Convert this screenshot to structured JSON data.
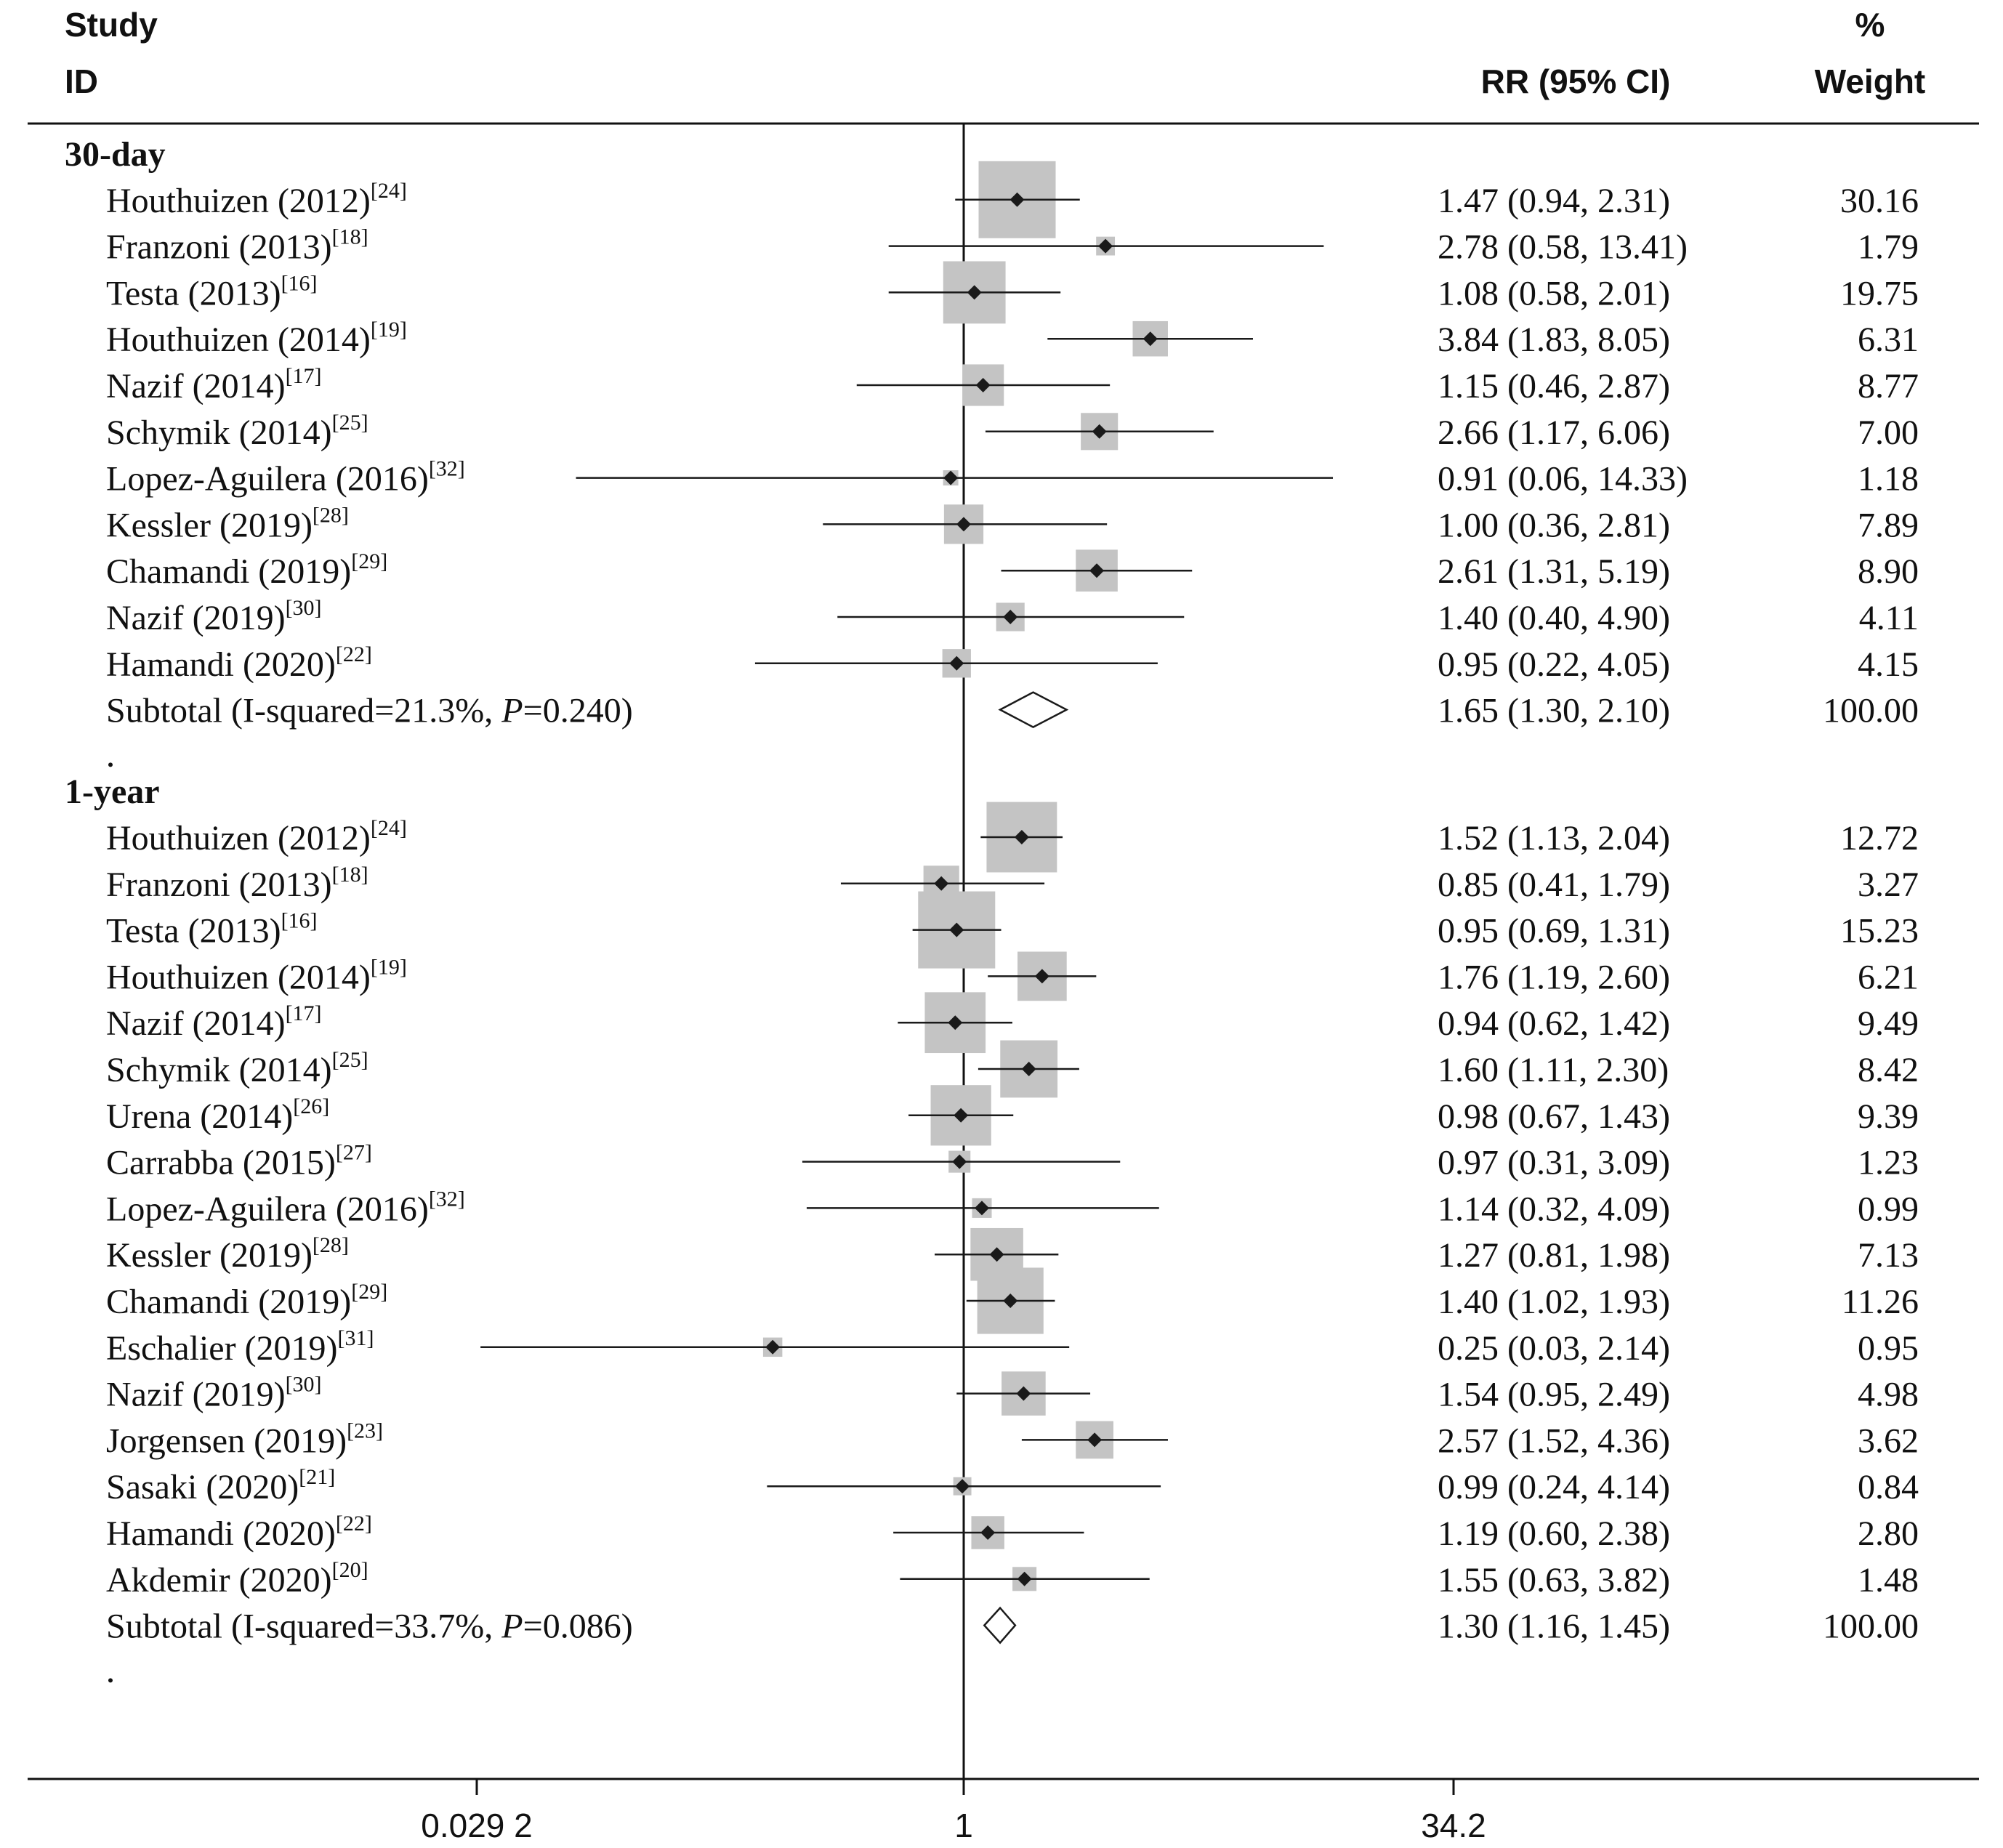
{
  "header": {
    "study_line1": "Study",
    "study_line2": "ID",
    "rr_label": "RR (95% CI)",
    "weight_line1": "%",
    "weight_line2": "Weight"
  },
  "chart_data": {
    "type": "forest",
    "effect_measure": "RR",
    "axis": {
      "scale": "log",
      "range": [
        0.0292,
        34.2
      ],
      "ticks": [
        0.0292,
        1,
        34.2
      ],
      "tick_labels": [
        "0.029 2",
        "1",
        "34.2"
      ]
    },
    "groups": [
      {
        "label": "30-day",
        "studies": [
          {
            "name": "Houthuizen (2012)",
            "ref": "[24]",
            "rr": 1.47,
            "lo": 0.94,
            "hi": 2.31,
            "rr_text": "1.47 (0.94, 2.31)",
            "weight": "30.16"
          },
          {
            "name": "Franzoni (2013)",
            "ref": "[18]",
            "rr": 2.78,
            "lo": 0.58,
            "hi": 13.41,
            "rr_text": "2.78 (0.58, 13.41)",
            "weight": "1.79"
          },
          {
            "name": "Testa (2013)",
            "ref": "[16]",
            "rr": 1.08,
            "lo": 0.58,
            "hi": 2.01,
            "rr_text": "1.08 (0.58, 2.01)",
            "weight": "19.75"
          },
          {
            "name": "Houthuizen (2014)",
            "ref": "[19]",
            "rr": 3.84,
            "lo": 1.83,
            "hi": 8.05,
            "rr_text": "3.84 (1.83, 8.05)",
            "weight": "6.31"
          },
          {
            "name": "Nazif (2014)",
            "ref": "[17]",
            "rr": 1.15,
            "lo": 0.46,
            "hi": 2.87,
            "rr_text": "1.15 (0.46, 2.87)",
            "weight": "8.77"
          },
          {
            "name": "Schymik (2014)",
            "ref": "[25]",
            "rr": 2.66,
            "lo": 1.17,
            "hi": 6.06,
            "rr_text": "2.66 (1.17, 6.06)",
            "weight": "7.00"
          },
          {
            "name": "Lopez-Aguilera (2016)",
            "ref": "[32]",
            "rr": 0.91,
            "lo": 0.06,
            "hi": 14.33,
            "rr_text": "0.91 (0.06, 14.33)",
            "weight": "1.18"
          },
          {
            "name": "Kessler (2019)",
            "ref": "[28]",
            "rr": 1.0,
            "lo": 0.36,
            "hi": 2.81,
            "rr_text": "1.00 (0.36, 2.81)",
            "weight": "7.89"
          },
          {
            "name": "Chamandi (2019)",
            "ref": "[29]",
            "rr": 2.61,
            "lo": 1.31,
            "hi": 5.19,
            "rr_text": "2.61 (1.31, 5.19)",
            "weight": "8.90"
          },
          {
            "name": "Nazif (2019)",
            "ref": "[30]",
            "rr": 1.4,
            "lo": 0.4,
            "hi": 4.9,
            "rr_text": "1.40 (0.40, 4.90)",
            "weight": "4.11"
          },
          {
            "name": "Hamandi (2020)",
            "ref": "[22]",
            "rr": 0.95,
            "lo": 0.22,
            "hi": 4.05,
            "rr_text": "0.95 (0.22, 4.05)",
            "weight": "4.15"
          }
        ],
        "subtotal": {
          "label_prefix": "Subtotal  (I-squared=21.3%, ",
          "p_letter": "P",
          "p_value": "=0.240)",
          "rr": 1.65,
          "lo": 1.3,
          "hi": 2.1,
          "rr_text": "1.65 (1.30, 2.10)",
          "weight": "100.00"
        }
      },
      {
        "label": "1-year",
        "studies": [
          {
            "name": "Houthuizen (2012)",
            "ref": "[24]",
            "rr": 1.52,
            "lo": 1.13,
            "hi": 2.04,
            "rr_text": "1.52 (1.13, 2.04)",
            "weight": "12.72"
          },
          {
            "name": "Franzoni (2013)",
            "ref": "[18]",
            "rr": 0.85,
            "lo": 0.41,
            "hi": 1.79,
            "rr_text": "0.85 (0.41, 1.79)",
            "weight": "3.27"
          },
          {
            "name": "Testa (2013)",
            "ref": "[16]",
            "rr": 0.95,
            "lo": 0.69,
            "hi": 1.31,
            "rr_text": "0.95 (0.69, 1.31)",
            "weight": "15.23"
          },
          {
            "name": "Houthuizen (2014)",
            "ref": "[19]",
            "rr": 1.76,
            "lo": 1.19,
            "hi": 2.6,
            "rr_text": "1.76 (1.19, 2.60)",
            "weight": "6.21"
          },
          {
            "name": "Nazif (2014)",
            "ref": "[17]",
            "rr": 0.94,
            "lo": 0.62,
            "hi": 1.42,
            "rr_text": "0.94 (0.62, 1.42)",
            "weight": "9.49"
          },
          {
            "name": "Schymik (2014)",
            "ref": "[25]",
            "rr": 1.6,
            "lo": 1.11,
            "hi": 2.3,
            "rr_text": "1.60 (1.11, 2.30)",
            "weight": "8.42"
          },
          {
            "name": "Urena (2014)",
            "ref": "[26]",
            "rr": 0.98,
            "lo": 0.67,
            "hi": 1.43,
            "rr_text": "0.98 (0.67, 1.43)",
            "weight": "9.39"
          },
          {
            "name": "Carrabba (2015)",
            "ref": "[27]",
            "rr": 0.97,
            "lo": 0.31,
            "hi": 3.09,
            "rr_text": "0.97 (0.31, 3.09)",
            "weight": "1.23"
          },
          {
            "name": "Lopez-Aguilera (2016)",
            "ref": "[32]",
            "rr": 1.14,
            "lo": 0.32,
            "hi": 4.09,
            "rr_text": "1.14 (0.32, 4.09)",
            "weight": "0.99"
          },
          {
            "name": "Kessler (2019)",
            "ref": "[28]",
            "rr": 1.27,
            "lo": 0.81,
            "hi": 1.98,
            "rr_text": "1.27 (0.81, 1.98)",
            "weight": "7.13"
          },
          {
            "name": "Chamandi (2019)",
            "ref": "[29]",
            "rr": 1.4,
            "lo": 1.02,
            "hi": 1.93,
            "rr_text": "1.40 (1.02, 1.93)",
            "weight": "11.26"
          },
          {
            "name": "Eschalier (2019)",
            "ref": "[31]",
            "rr": 0.25,
            "lo": 0.03,
            "hi": 2.14,
            "rr_text": "0.25 (0.03, 2.14)",
            "weight": "0.95"
          },
          {
            "name": "Nazif (2019)",
            "ref": "[30]",
            "rr": 1.54,
            "lo": 0.95,
            "hi": 2.49,
            "rr_text": "1.54 (0.95, 2.49)",
            "weight": "4.98"
          },
          {
            "name": "Jorgensen (2019)",
            "ref": "[23]",
            "rr": 2.57,
            "lo": 1.52,
            "hi": 4.36,
            "rr_text": "2.57 (1.52, 4.36)",
            "weight": "3.62"
          },
          {
            "name": "Sasaki (2020)",
            "ref": "[21]",
            "rr": 0.99,
            "lo": 0.24,
            "hi": 4.14,
            "rr_text": "0.99 (0.24, 4.14)",
            "weight": "0.84"
          },
          {
            "name": "Hamandi (2020)",
            "ref": "[22]",
            "rr": 1.19,
            "lo": 0.6,
            "hi": 2.38,
            "rr_text": "1.19 (0.60, 2.38)",
            "weight": "2.80"
          },
          {
            "name": "Akdemir (2020)",
            "ref": "[20]",
            "rr": 1.55,
            "lo": 0.63,
            "hi": 3.82,
            "rr_text": "1.55 (0.63, 3.82)",
            "weight": "1.48"
          }
        ],
        "subtotal": {
          "label_prefix": "Subtotal  (I-squared=33.7%, ",
          "p_letter": "P",
          "p_value": "=0.086)",
          "rr": 1.3,
          "lo": 1.16,
          "hi": 1.45,
          "rr_text": "1.30 (1.16, 1.45)",
          "weight": "100.00"
        }
      }
    ],
    "colors": {
      "box": "#c4c4c4",
      "point": "#1a1a1a",
      "line": "#1a1a1a"
    }
  }
}
